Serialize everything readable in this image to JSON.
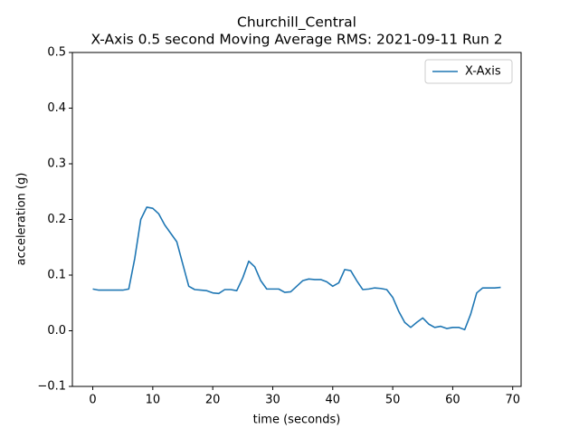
{
  "chart_data": {
    "type": "line",
    "title": "Churchill_Central",
    "subtitle": "X-Axis 0.5 second Moving Average RMS: 2021-09-11 Run 2",
    "x_label": "time (seconds)",
    "y_label": "acceleration (g)",
    "x": [
      0,
      1,
      2,
      3,
      4,
      5,
      6,
      7,
      8,
      9,
      10,
      11,
      12,
      13,
      14,
      15,
      16,
      17,
      18,
      19,
      20,
      21,
      22,
      23,
      24,
      25,
      26,
      27,
      28,
      29,
      30,
      31,
      32,
      33,
      34,
      35,
      36,
      37,
      38,
      39,
      40,
      41,
      42,
      43,
      44,
      45,
      46,
      47,
      48,
      49,
      50,
      51,
      52,
      53,
      54,
      55,
      56,
      57,
      58,
      59,
      60,
      61,
      62,
      63,
      64,
      65,
      66,
      67,
      68
    ],
    "series": [
      {
        "name": "X-Axis",
        "color": "#1f77b4",
        "values": [
          0.075,
          0.073,
          0.073,
          0.073,
          0.073,
          0.073,
          0.075,
          0.13,
          0.2,
          0.222,
          0.22,
          0.21,
          0.19,
          0.175,
          0.16,
          0.12,
          0.08,
          0.074,
          0.073,
          0.072,
          0.068,
          0.067,
          0.074,
          0.074,
          0.072,
          0.095,
          0.125,
          0.115,
          0.09,
          0.075,
          0.075,
          0.075,
          0.069,
          0.07,
          0.08,
          0.09,
          0.093,
          0.092,
          0.092,
          0.088,
          0.08,
          0.086,
          0.11,
          0.108,
          0.09,
          0.074,
          0.075,
          0.077,
          0.076,
          0.074,
          0.06,
          0.035,
          0.015,
          0.006,
          0.015,
          0.023,
          0.012,
          0.006,
          0.008,
          0.004,
          0.006,
          0.006,
          0.002,
          0.03,
          0.068,
          0.077,
          0.077,
          0.077,
          0.078
        ]
      }
    ],
    "xlim": [
      -3.4,
      71.4
    ],
    "xticks": [
      0,
      10,
      20,
      30,
      40,
      50,
      60,
      70
    ],
    "ylim": [
      -0.1,
      0.5
    ],
    "yticks": [
      {
        "value": -0.1,
        "label": "−0.1"
      },
      {
        "value": 0,
        "label": "0.0"
      },
      0.1,
      0.2,
      0.3,
      0.4,
      0.5
    ],
    "grid": false,
    "legend": "upper right"
  }
}
